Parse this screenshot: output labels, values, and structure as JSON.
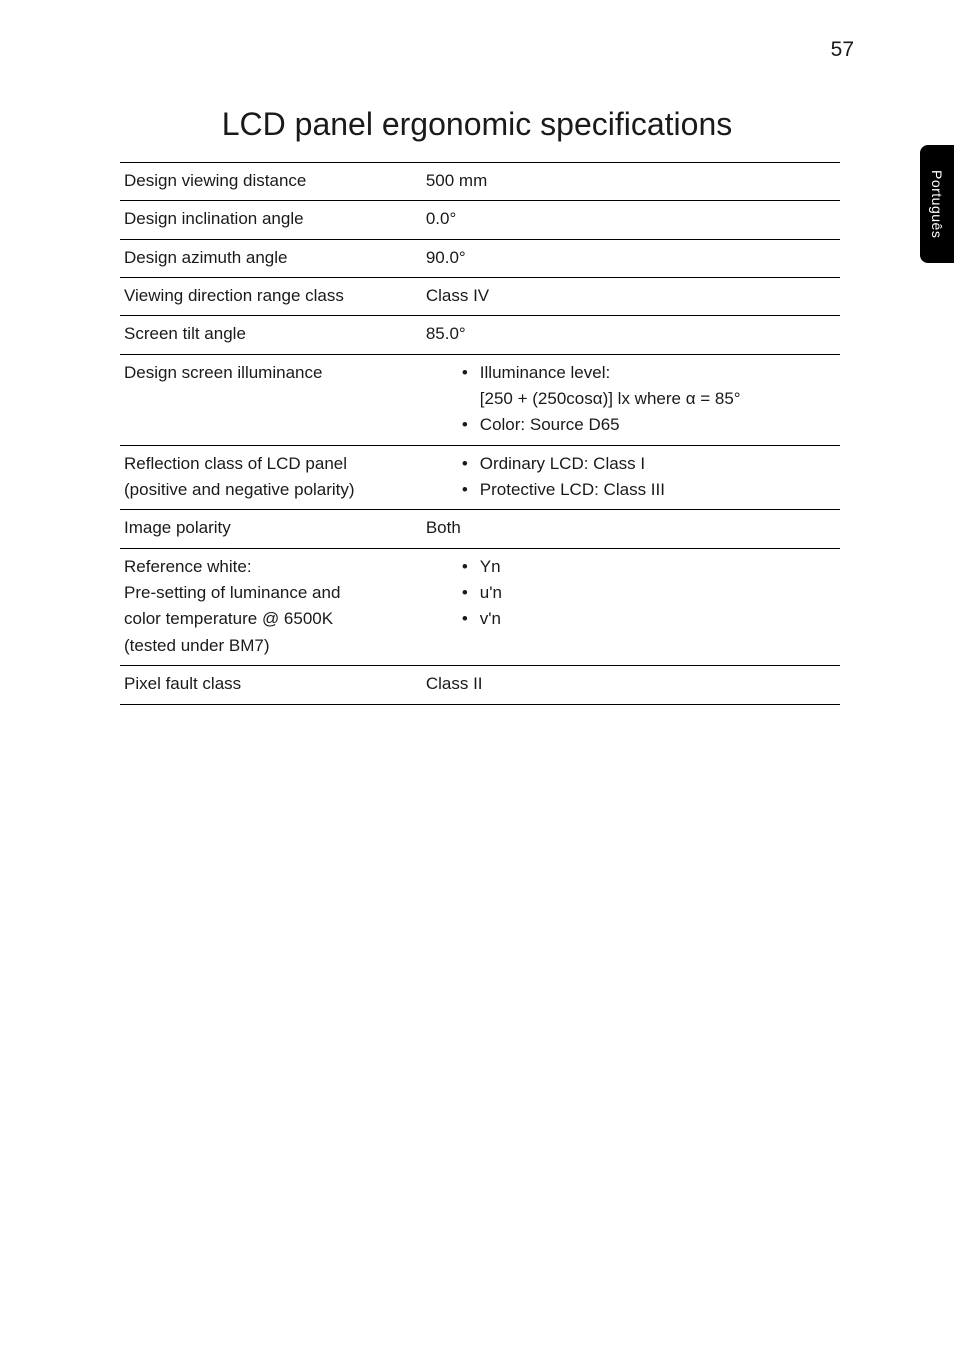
{
  "page_number": "57",
  "side_tab": "Português",
  "title": "LCD panel ergonomic specifications",
  "rows": {
    "r0": {
      "label": "Design viewing distance",
      "value": "500 mm"
    },
    "r1": {
      "label": "Design inclination angle",
      "value": "0.0°"
    },
    "r2": {
      "label": "Design azimuth angle",
      "value": "90.0°"
    },
    "r3": {
      "label": "Viewing direction range class",
      "value": "Class IV"
    },
    "r4": {
      "label": "Screen tilt angle",
      "value": "85.0°"
    },
    "r5": {
      "label": "Design screen illuminance",
      "line1": "Illuminance level:",
      "line2": "[250 + (250cosα)] lx where α = 85°",
      "line3": "Color: Source D65"
    },
    "r6": {
      "label1": "Reflection class of LCD panel",
      "label2": "(positive and negative polarity)",
      "line1": "Ordinary LCD: Class I",
      "line2": "Protective LCD: Class III"
    },
    "r7": {
      "label": "Image polarity",
      "value": "Both"
    },
    "r8": {
      "label1": "Reference white:",
      "label2": "Pre-setting of luminance and",
      "label3": "color temperature @ 6500K",
      "label4": "(tested under BM7)",
      "line1": "Yn",
      "line2": "u'n",
      "line3": "v'n"
    },
    "r9": {
      "label": "Pixel fault class",
      "value": "Class II"
    }
  },
  "bullet": "•"
}
